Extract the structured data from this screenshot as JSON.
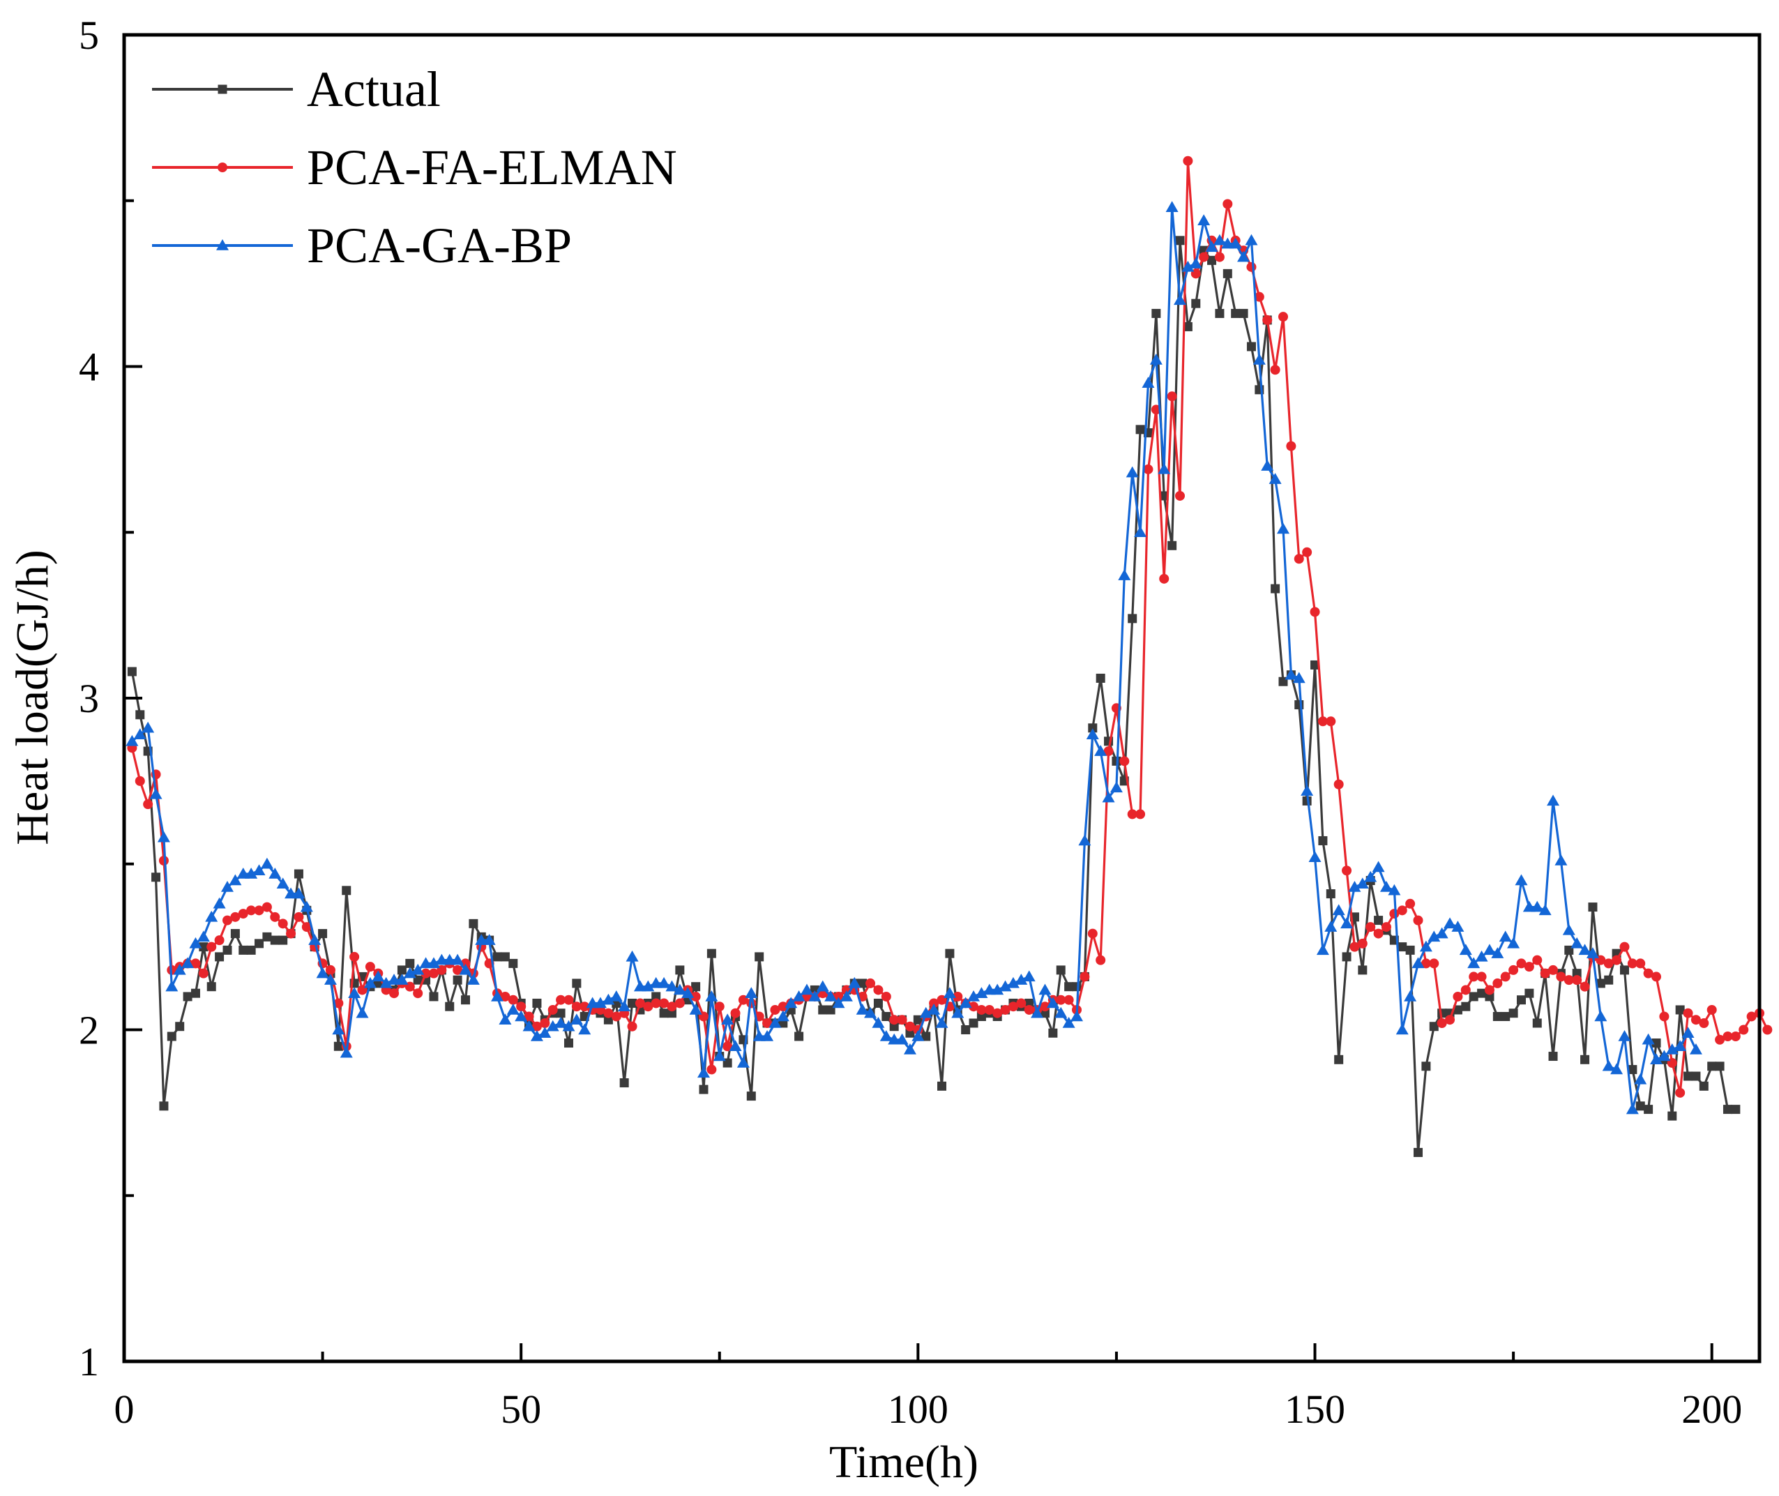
{
  "chart_data": {
    "type": "line",
    "title": "",
    "xlabel": "Time(h)",
    "ylabel": "Heat load(GJ/h)",
    "xlim": [
      0,
      206
    ],
    "ylim": [
      1,
      5
    ],
    "x_major_ticks": [
      0,
      50,
      100,
      150,
      200
    ],
    "x_minor_ticks": [
      25,
      75,
      125,
      175
    ],
    "x_tick_labels": [
      "0",
      "50",
      "100",
      "150",
      "200"
    ],
    "y_major_ticks": [
      1,
      2,
      3,
      4,
      5
    ],
    "y_minor_ticks": [
      1.5,
      2.5,
      3.5,
      4.5
    ],
    "y_tick_labels": [
      "1",
      "2",
      "3",
      "4",
      "5"
    ],
    "grid": false,
    "legend_position": "top-left",
    "series": [
      {
        "name": "Actual",
        "color": "#3a3a3a",
        "marker": "square",
        "x_start": 1,
        "values": [
          3.08,
          2.95,
          2.84,
          2.46,
          1.77,
          1.98,
          2.01,
          2.1,
          2.11,
          2.25,
          2.13,
          2.22,
          2.24,
          2.29,
          2.24,
          2.24,
          2.26,
          2.28,
          2.27,
          2.27,
          2.29,
          2.47,
          2.36,
          2.25,
          2.29,
          2.17,
          1.95,
          2.42,
          2.14,
          2.16,
          2.13,
          2.14,
          2.13,
          2.12,
          2.18,
          2.2,
          2.15,
          2.15,
          2.1,
          2.18,
          2.07,
          2.15,
          2.09,
          2.32,
          2.28,
          2.27,
          2.22,
          2.22,
          2.2,
          2.08,
          2.02,
          2.08,
          2.03,
          2.05,
          2.05,
          1.96,
          2.14,
          2.04,
          2.06,
          2.05,
          2.03,
          2.08,
          1.84,
          2.08,
          2.06,
          2.08,
          2.1,
          2.05,
          2.05,
          2.18,
          2.09,
          2.13,
          1.82,
          2.23,
          1.92,
          1.9,
          2.04,
          1.97,
          1.8,
          2.22,
          2.02,
          2.02,
          2.02,
          2.06,
          1.98,
          2.1,
          2.12,
          2.06,
          2.06,
          2.1,
          2.12,
          2.14,
          2.14,
          2.05,
          2.08,
          2.04,
          2.01,
          2.03,
          1.99,
          2.03,
          1.98,
          2.07,
          1.83,
          2.23,
          2.06,
          2.0,
          2.02,
          2.04,
          2.05,
          2.04,
          2.06,
          2.08,
          2.07,
          2.08,
          2.06,
          2.05,
          1.99,
          2.18,
          2.13,
          2.13,
          2.16,
          2.91,
          3.06,
          2.87,
          2.81,
          2.75,
          3.24,
          3.81,
          3.8,
          4.16,
          3.61,
          3.46,
          4.38,
          4.12,
          4.19,
          4.35,
          4.32,
          4.16,
          4.28,
          4.16,
          4.16,
          4.06,
          3.93,
          4.14,
          3.33,
          3.05,
          3.07,
          2.98,
          2.69,
          3.1,
          2.57,
          2.41,
          1.91,
          2.22,
          2.34,
          2.18,
          2.45,
          2.33,
          2.3,
          2.27,
          2.25,
          2.24,
          1.63,
          1.89,
          2.01,
          2.05,
          2.05,
          2.06,
          2.07,
          2.1,
          2.11,
          2.1,
          2.04,
          2.04,
          2.05,
          2.09,
          2.11,
          2.02,
          2.17,
          1.92,
          2.17,
          2.24,
          2.17,
          1.91,
          2.37,
          2.14,
          2.15,
          2.23,
          2.18,
          1.88,
          1.77,
          1.76,
          1.96,
          1.91,
          1.74,
          2.06,
          1.86,
          1.86,
          1.83,
          1.89,
          1.89,
          1.76,
          1.76
        ]
      },
      {
        "name": "PCA-FA-ELMAN",
        "color": "#e8252b",
        "marker": "circle",
        "x_start": 1,
        "values": [
          2.85,
          2.75,
          2.68,
          2.77,
          2.51,
          2.18,
          2.19,
          2.2,
          2.2,
          2.17,
          2.25,
          2.27,
          2.33,
          2.34,
          2.35,
          2.36,
          2.36,
          2.37,
          2.34,
          2.32,
          2.29,
          2.34,
          2.31,
          2.25,
          2.2,
          2.18,
          2.08,
          1.95,
          2.22,
          2.12,
          2.19,
          2.17,
          2.12,
          2.11,
          2.14,
          2.13,
          2.11,
          2.17,
          2.17,
          2.18,
          2.2,
          2.18,
          2.2,
          2.17,
          2.25,
          2.2,
          2.11,
          2.1,
          2.09,
          2.07,
          2.04,
          2.01,
          2.02,
          2.06,
          2.09,
          2.09,
          2.07,
          2.07,
          2.06,
          2.06,
          2.05,
          2.04,
          2.05,
          2.01,
          2.08,
          2.07,
          2.08,
          2.08,
          2.07,
          2.08,
          2.12,
          2.1,
          2.04,
          1.88,
          2.07,
          1.95,
          2.05,
          2.09,
          2.08,
          2.04,
          2.02,
          2.06,
          2.07,
          2.08,
          2.09,
          2.1,
          2.1,
          2.11,
          2.1,
          2.1,
          2.12,
          2.12,
          2.1,
          2.14,
          2.12,
          2.1,
          2.03,
          2.03,
          2.01,
          2.0,
          2.04,
          2.08,
          2.09,
          2.07,
          2.1,
          2.08,
          2.07,
          2.06,
          2.06,
          2.05,
          2.06,
          2.07,
          2.08,
          2.06,
          2.06,
          2.07,
          2.09,
          2.09,
          2.09,
          2.06,
          2.16,
          2.29,
          2.21,
          2.84,
          2.97,
          2.81,
          2.65,
          2.65,
          3.69,
          3.87,
          3.36,
          3.91,
          3.61,
          4.62,
          4.28,
          4.33,
          4.38,
          4.33,
          4.49,
          4.38,
          4.35,
          4.3,
          4.21,
          4.14,
          3.99,
          4.15,
          3.76,
          3.42,
          3.44,
          3.26,
          2.93,
          2.93,
          2.74,
          2.48,
          2.25,
          2.26,
          2.31,
          2.29,
          2.31,
          2.35,
          2.36,
          2.38,
          2.33,
          2.2,
          2.2,
          2.02,
          2.03,
          2.1,
          2.12,
          2.16,
          2.16,
          2.12,
          2.14,
          2.16,
          2.18,
          2.2,
          2.19,
          2.21,
          2.17,
          2.18,
          2.16,
          2.15,
          2.15,
          2.13,
          2.22,
          2.21,
          2.2,
          2.21,
          2.25,
          2.2,
          2.2,
          2.17,
          2.16,
          2.04,
          1.9,
          1.81,
          2.05,
          2.03,
          2.02,
          2.06,
          1.97,
          1.98,
          1.98,
          2.0,
          2.04,
          2.05,
          2.0
        ]
      },
      {
        "name": "PCA-GA-BP",
        "color": "#1366d6",
        "marker": "triangle",
        "x_start": 1,
        "values": [
          2.87,
          2.89,
          2.91,
          2.71,
          2.58,
          2.13,
          2.18,
          2.2,
          2.26,
          2.28,
          2.34,
          2.38,
          2.43,
          2.45,
          2.47,
          2.47,
          2.48,
          2.5,
          2.47,
          2.44,
          2.41,
          2.41,
          2.37,
          2.27,
          2.17,
          2.15,
          2.0,
          1.93,
          2.11,
          2.05,
          2.14,
          2.16,
          2.14,
          2.15,
          2.15,
          2.17,
          2.18,
          2.2,
          2.2,
          2.21,
          2.21,
          2.21,
          2.18,
          2.15,
          2.27,
          2.27,
          2.1,
          2.03,
          2.06,
          2.04,
          2.01,
          1.98,
          1.99,
          2.01,
          2.02,
          2.01,
          2.03,
          2.0,
          2.08,
          2.08,
          2.09,
          2.1,
          2.07,
          2.22,
          2.13,
          2.13,
          2.14,
          2.14,
          2.13,
          2.12,
          2.11,
          2.06,
          1.87,
          2.1,
          1.92,
          2.03,
          1.95,
          1.9,
          2.11,
          1.98,
          1.98,
          2.02,
          2.04,
          2.08,
          2.1,
          2.12,
          2.1,
          2.13,
          2.1,
          2.08,
          2.1,
          2.14,
          2.06,
          2.05,
          2.02,
          1.98,
          1.97,
          1.97,
          1.94,
          1.98,
          2.05,
          2.06,
          2.02,
          2.11,
          2.05,
          2.08,
          2.1,
          2.11,
          2.12,
          2.12,
          2.13,
          2.14,
          2.15,
          2.16,
          2.05,
          2.12,
          2.08,
          2.05,
          2.02,
          2.04,
          2.57,
          2.89,
          2.84,
          2.7,
          2.73,
          3.37,
          3.68,
          3.5,
          3.95,
          4.02,
          3.69,
          4.48,
          4.2,
          4.3,
          4.31,
          4.44,
          4.36,
          4.38,
          4.37,
          4.37,
          4.33,
          4.38,
          4.02,
          3.7,
          3.66,
          3.51,
          3.07,
          3.06,
          2.72,
          2.52,
          2.24,
          2.31,
          2.36,
          2.32,
          2.43,
          2.44,
          2.46,
          2.49,
          2.43,
          2.42,
          2.0,
          2.1,
          2.2,
          2.25,
          2.28,
          2.29,
          2.32,
          2.31,
          2.24,
          2.2,
          2.22,
          2.24,
          2.23,
          2.28,
          2.26,
          2.45,
          2.37,
          2.37,
          2.36,
          2.69,
          2.51,
          2.3,
          2.26,
          2.24,
          2.23,
          2.04,
          1.89,
          1.88,
          1.98,
          1.76,
          1.85,
          1.97,
          1.91,
          1.92,
          1.94,
          1.95,
          1.99,
          1.94
        ]
      }
    ]
  }
}
